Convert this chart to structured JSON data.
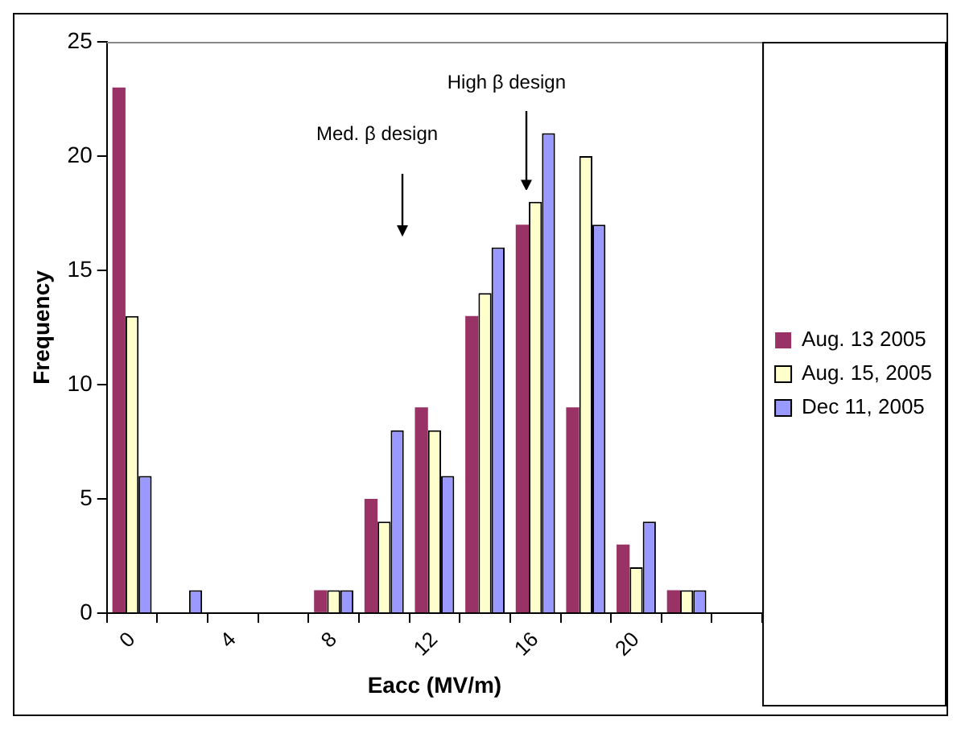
{
  "chart_data": {
    "type": "bar",
    "xlabel": "Eacc (MV/m)",
    "ylabel": "Frequency",
    "categories": [
      "0",
      null,
      "4",
      null,
      "8",
      null,
      "12",
      null,
      "16",
      null,
      "20",
      null,
      null
    ],
    "series": [
      {
        "name": "Aug. 13 2005",
        "color": "#993366",
        "values": [
          23,
          0,
          0,
          0,
          1,
          5,
          9,
          13,
          17,
          9,
          3,
          1,
          0
        ]
      },
      {
        "name": "Aug. 15, 2005",
        "color": "#ffffcc",
        "values": [
          13,
          0,
          0,
          0,
          1,
          4,
          8,
          14,
          18,
          20,
          2,
          1,
          0
        ]
      },
      {
        "name": "Dec 11, 2005",
        "color": "#9999ff",
        "values": [
          6,
          1,
          0,
          0,
          1,
          8,
          6,
          16,
          21,
          17,
          4,
          1,
          0
        ]
      }
    ],
    "ylim": [
      0,
      25
    ],
    "yticks": [
      0,
      5,
      10,
      15,
      20,
      25
    ],
    "grid": false,
    "legend": "right",
    "annotations": [
      "Med. β design",
      "High β design"
    ]
  }
}
